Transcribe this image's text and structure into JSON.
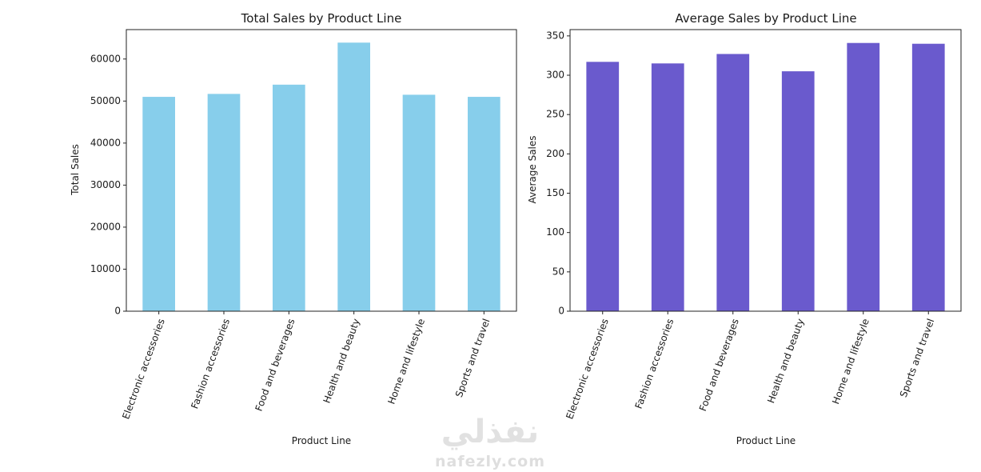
{
  "chart_data": [
    {
      "type": "bar",
      "title": "Total Sales by Product Line",
      "xlabel": "Product Line",
      "ylabel": "Total Sales",
      "categories": [
        "Electronic accessories",
        "Fashion accessories",
        "Food and beverages",
        "Health and beauty",
        "Home and lifestyle",
        "Sports and travel"
      ],
      "values": [
        51000,
        51700,
        53900,
        63900,
        51500,
        51000
      ],
      "ylim": [
        0,
        67000
      ],
      "yticks": [
        0,
        10000,
        20000,
        30000,
        40000,
        50000,
        60000
      ],
      "color": "#87ceeb",
      "grid": false,
      "legend": false
    },
    {
      "type": "bar",
      "title": "Average Sales by Product Line",
      "xlabel": "Product Line",
      "ylabel": "Average Sales",
      "categories": [
        "Electronic accessories",
        "Fashion accessories",
        "Food and beverages",
        "Health and beauty",
        "Home and lifestyle",
        "Sports and travel"
      ],
      "values": [
        317,
        315,
        327,
        305,
        341,
        340
      ],
      "ylim": [
        0,
        358
      ],
      "yticks": [
        0,
        50,
        100,
        150,
        200,
        250,
        300,
        350
      ],
      "color": "#6a5acd",
      "grid": false,
      "legend": false
    }
  ],
  "watermark": {
    "arabic": "نفذلي",
    "latin": "nafezly.com"
  }
}
